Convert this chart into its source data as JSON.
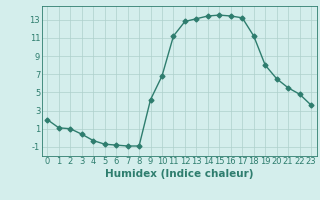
{
  "x": [
    0,
    1,
    2,
    3,
    4,
    5,
    6,
    7,
    8,
    9,
    10,
    11,
    12,
    13,
    14,
    15,
    16,
    17,
    18,
    19,
    20,
    21,
    22,
    23
  ],
  "y": [
    2.0,
    1.1,
    1.0,
    0.4,
    -0.3,
    -0.7,
    -0.8,
    -0.9,
    -0.9,
    4.2,
    6.8,
    11.2,
    12.8,
    13.1,
    13.4,
    13.5,
    13.4,
    13.2,
    11.2,
    8.0,
    6.5,
    5.5,
    4.8,
    3.6
  ],
  "line_color": "#2e7d6e",
  "marker": "D",
  "marker_size": 2.5,
  "bg_color": "#d4eeec",
  "grid_color": "#aed0cc",
  "xlabel": "Humidex (Indice chaleur)",
  "xlim": [
    -0.5,
    23.5
  ],
  "ylim": [
    -2.0,
    14.5
  ],
  "yticks": [
    -1,
    1,
    3,
    5,
    7,
    9,
    11,
    13
  ],
  "xticks": [
    0,
    1,
    2,
    3,
    4,
    5,
    6,
    7,
    8,
    9,
    10,
    11,
    12,
    13,
    14,
    15,
    16,
    17,
    18,
    19,
    20,
    21,
    22,
    23
  ],
  "tick_color": "#2e7d6e",
  "spine_color": "#2e7d6e",
  "label_color": "#2e7d6e",
  "font_size": 6,
  "xlabel_font_size": 7.5,
  "linewidth": 1.0
}
